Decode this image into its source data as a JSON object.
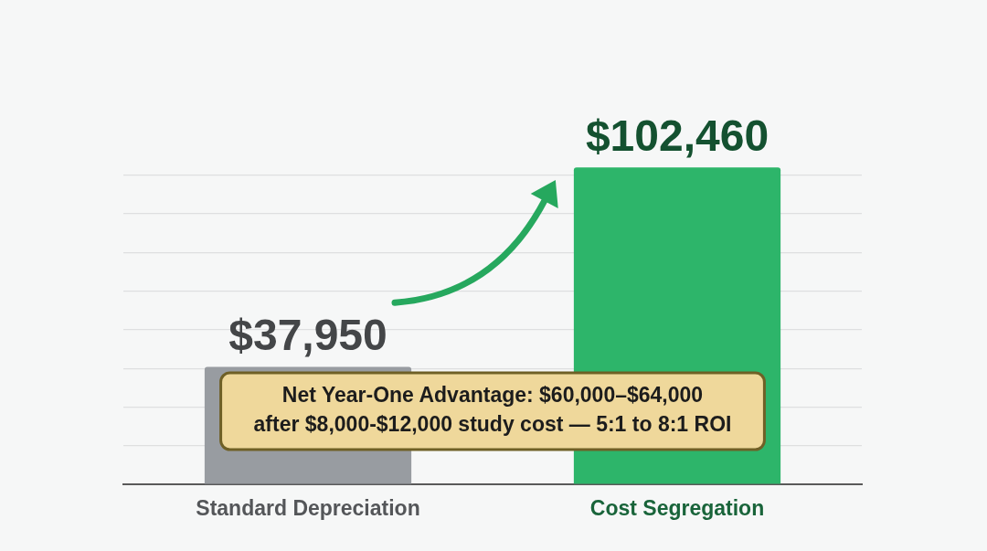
{
  "chart_data": {
    "type": "bar",
    "categories": [
      "Standard Depreciation",
      "Cost Segregation"
    ],
    "values": [
      37950,
      102460
    ],
    "colors": [
      "#989ca1",
      "#2db56a"
    ],
    "value_labels": [
      "$37,950",
      "$102,460"
    ],
    "yticks": [
      {
        "value": 0,
        "label": null
      },
      {
        "value": 12500,
        "label": null
      },
      {
        "value": 25000,
        "label": null
      },
      {
        "value": 37500,
        "label": null
      },
      {
        "value": 50000,
        "label": null
      },
      {
        "value": 62500,
        "label": null
      },
      {
        "value": 75000,
        "label": null
      },
      {
        "value": 87500,
        "label": null
      },
      {
        "value": 100000,
        "label": null
      }
    ],
    "grid": "y",
    "tick_labels": "x",
    "annotations": [
      "Net Year-One Advantage: $60,000–$64,000",
      "after $8,000-$12,000 study cost — 5:1 to 8:1 ROI"
    ]
  }
}
